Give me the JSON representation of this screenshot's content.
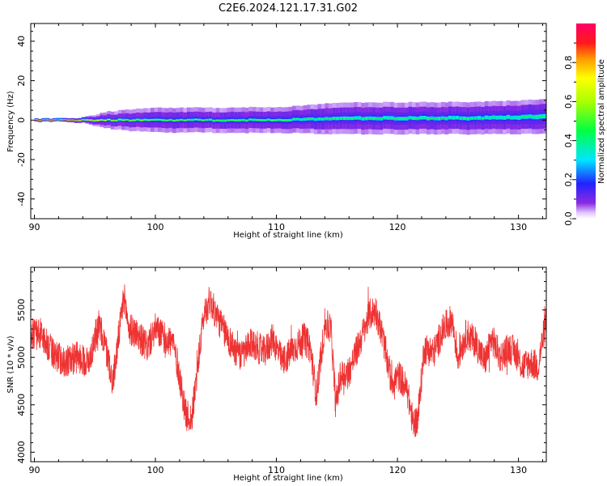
{
  "title": "C2E6.2024.121.17.31.G02",
  "chart_data": [
    {
      "type": "heatmap",
      "xlabel": "Height of straight line (km)",
      "ylabel": "Frequency (Hz)",
      "xlim": [
        89.7,
        132.3
      ],
      "ylim": [
        -50,
        49
      ],
      "xticks": [
        90,
        100,
        110,
        120,
        130
      ],
      "yticks": [
        -40,
        -20,
        0,
        20,
        40
      ],
      "ridge": {
        "x": [
          90,
          92,
          94,
          96,
          98,
          100,
          102,
          104,
          106,
          108,
          110,
          112,
          114,
          116,
          118,
          120,
          122,
          124,
          126,
          128,
          130,
          132.3
        ],
        "center_hz": [
          0,
          0,
          0,
          0,
          0,
          0,
          0,
          0,
          0,
          0,
          0,
          0.3,
          0.5,
          0.8,
          1.0,
          1.0,
          1.0,
          1.0,
          1.0,
          1.2,
          1.5,
          1.7
        ],
        "halfwidth_hz": [
          0.8,
          0.8,
          0.9,
          1.2,
          1.5,
          1.7,
          1.8,
          1.8,
          1.9,
          2.0,
          2.0,
          2.4,
          2.8,
          3.0,
          3.1,
          3.1,
          3.1,
          3.1,
          3.2,
          3.3,
          3.5,
          3.8
        ],
        "peak_amplitude": [
          0.95,
          0.9,
          0.82,
          0.7,
          0.6,
          0.55,
          0.53,
          0.52,
          0.52,
          0.5,
          0.5,
          0.45,
          0.42,
          0.42,
          0.42,
          0.42,
          0.42,
          0.42,
          0.42,
          0.42,
          0.42,
          0.42
        ],
        "halo_halfwidth_hz": [
          0,
          0,
          0.5,
          3,
          4,
          4.5,
          4.5,
          4.5,
          4.5,
          4.5,
          4.5,
          4.5,
          5,
          5,
          5,
          5,
          5,
          5,
          5,
          5,
          5,
          5
        ]
      },
      "colorbar": {
        "label": "Normalized spectral amplitude",
        "ticks": [
          0.0,
          0.2,
          0.4,
          0.6,
          0.8
        ],
        "range": [
          0,
          1
        ]
      }
    },
    {
      "type": "line",
      "xlabel": "Height of straight line (km)",
      "ylabel": "SNR (10 * v/v)",
      "xlim": [
        89.7,
        132.3
      ],
      "ylim": [
        3900,
        5950
      ],
      "xticks": [
        90,
        100,
        110,
        120,
        130
      ],
      "yticks": [
        4000,
        4500,
        5000,
        5500
      ],
      "color": "#ee3333",
      "series": [
        {
          "x": [
            89.7,
            90.5,
            91.5,
            92.5,
            93.5,
            94.5,
            95.3,
            95.8,
            96.5,
            97.0,
            97.4,
            97.8,
            98.5,
            99.3,
            100.0,
            100.8,
            101.5,
            102.0,
            102.5,
            103.0,
            103.5,
            104.0,
            104.5,
            105.0,
            106.0,
            107.0,
            108.0,
            109.0,
            109.7,
            110.5,
            111.5,
            112.3,
            112.8,
            113.3,
            114.0,
            114.5,
            114.9,
            115.3,
            116.0,
            117.0,
            117.7,
            118.2,
            118.8,
            119.5,
            120.2,
            120.8,
            121.3,
            121.7,
            122.2,
            123.0,
            123.8,
            124.5,
            125.0,
            125.7,
            126.5,
            127.2,
            127.8,
            128.5,
            129.2,
            129.8,
            130.3,
            131.0,
            131.6,
            132.3
          ],
          "values": [
            5250,
            5250,
            5050,
            4950,
            5000,
            4950,
            5350,
            5150,
            4750,
            5250,
            5650,
            5300,
            5250,
            5100,
            5300,
            5200,
            5150,
            4800,
            4400,
            4350,
            4900,
            5450,
            5600,
            5450,
            5200,
            5000,
            5150,
            5050,
            5200,
            4950,
            5100,
            5200,
            5100,
            4600,
            5350,
            5300,
            4500,
            4800,
            4850,
            5200,
            5450,
            5500,
            5200,
            4750,
            4800,
            4650,
            4300,
            4350,
            5100,
            5050,
            5300,
            5400,
            5000,
            5250,
            5150,
            4950,
            5200,
            5000,
            5100,
            5050,
            4900,
            4950,
            4900,
            5400
          ],
          "noise_amplitude": 170
        }
      ]
    }
  ]
}
